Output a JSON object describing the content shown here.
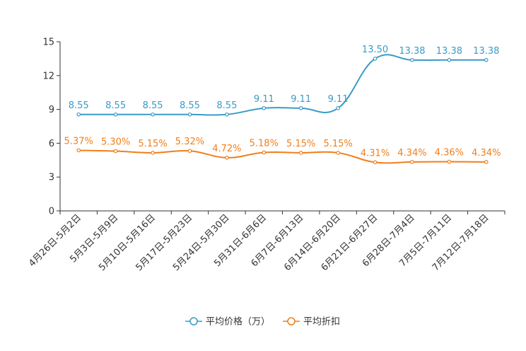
{
  "chart_data": {
    "type": "line",
    "title": "",
    "xlabel": "",
    "ylabel": "",
    "ylim": [
      0,
      15
    ],
    "yticks": [
      0,
      3,
      6,
      9,
      12,
      15
    ],
    "grid": false,
    "legend_position": "bottom-center",
    "categories": [
      "4月26日-5月2日",
      "5月3日-5月9日",
      "5月10日-5月16日",
      "5月17日-5月23日",
      "5月24日-5月30日",
      "5月31日-6月6日",
      "6月7日-6月13日",
      "6月14日-6月20日",
      "6月21日-6月27日",
      "6月28日-7月4日",
      "7月5日-7月11日",
      "7月12日-7月18日"
    ],
    "series": [
      {
        "name": "平均价格（万）",
        "color": "#3a9bc8",
        "values": [
          8.55,
          8.55,
          8.55,
          8.55,
          8.55,
          9.11,
          9.11,
          9.11,
          13.5,
          13.38,
          13.38,
          13.38
        ],
        "labels": [
          "8.55",
          "8.55",
          "8.55",
          "8.55",
          "8.55",
          "9.11",
          "9.11",
          "9.11",
          "13.50",
          "13.38",
          "13.38",
          "13.38"
        ]
      },
      {
        "name": "平均折扣",
        "color": "#f07f1b",
        "values": [
          5.37,
          5.3,
          5.15,
          5.32,
          4.72,
          5.18,
          5.15,
          5.15,
          4.31,
          4.34,
          4.36,
          4.34
        ],
        "labels": [
          "5.37%",
          "5.30%",
          "5.15%",
          "5.32%",
          "4.72%",
          "5.18%",
          "5.15%",
          "5.15%",
          "4.31%",
          "4.34%",
          "4.36%",
          "4.34%"
        ]
      }
    ]
  }
}
